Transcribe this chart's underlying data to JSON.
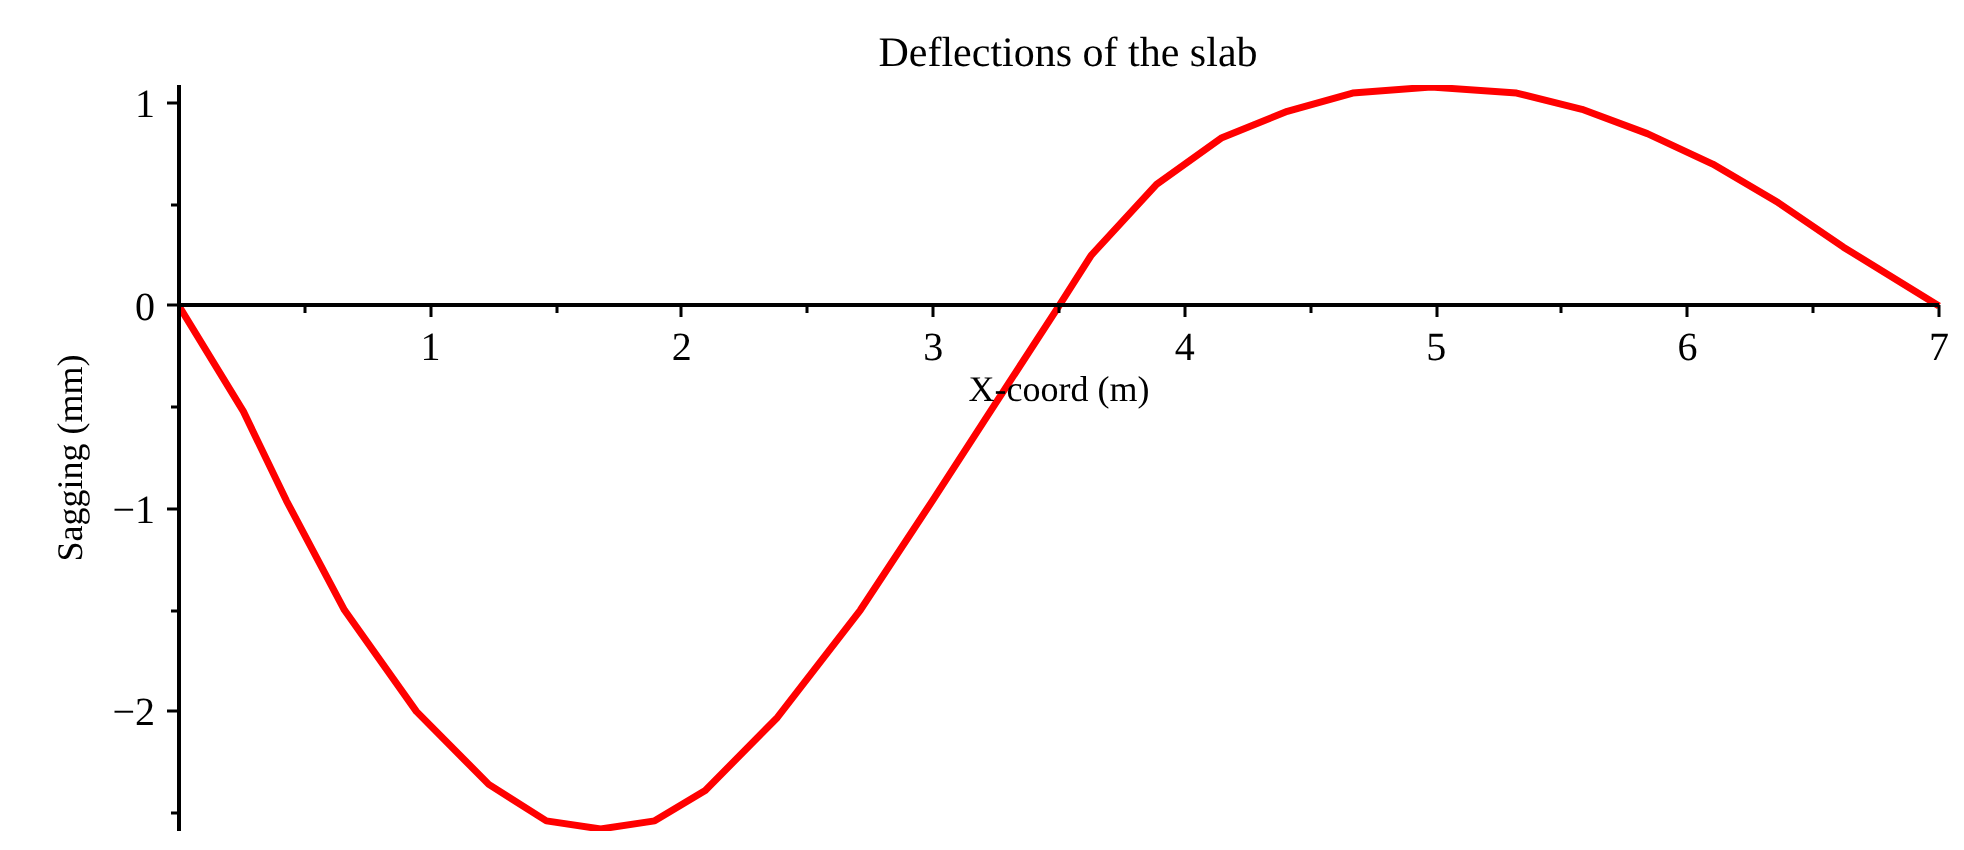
{
  "chart_data": {
    "type": "line",
    "title": "Deflections of the slab",
    "xlabel": "X-coord (m)",
    "ylabel": "Sagging (mm)",
    "x": [
      0,
      0.256,
      0.427,
      0.658,
      0.944,
      1.232,
      1.461,
      1.677,
      1.892,
      2.093,
      2.38,
      2.71,
      2.997,
      3.227,
      3.5,
      3.628,
      3.888,
      4.148,
      4.408,
      4.668,
      4.98,
      5.32,
      5.58,
      5.84,
      6.1,
      6.36,
      6.62,
      7
    ],
    "series": [
      {
        "color": "#ff0000",
        "values": [
          0,
          -0.52,
          -0.96,
          -1.5,
          -2.0,
          -2.36,
          -2.54,
          -2.58,
          -2.54,
          -2.39,
          -2.03,
          -1.5,
          -0.96,
          -0.52,
          0,
          0.25,
          0.6,
          0.83,
          0.96,
          1.05,
          1.08,
          1.05,
          0.97,
          0.85,
          0.7,
          0.51,
          0.29,
          0
        ]
      }
    ],
    "xlim": [
      0,
      7
    ],
    "ylim": [
      -2.59,
      1.09
    ],
    "xticks": [
      {
        "value": 0.5,
        "label": null
      },
      1,
      {
        "value": 1.5,
        "label": null
      },
      2,
      {
        "value": 2.5,
        "label": null
      },
      3,
      {
        "value": 3.5,
        "label": null
      },
      4,
      {
        "value": 4.5,
        "label": null
      },
      5,
      {
        "value": 5.5,
        "label": null
      },
      6,
      {
        "value": 6.5,
        "label": null
      },
      7
    ],
    "yticks": [
      {
        "value": -2.5,
        "label": null
      },
      {
        "value": -2,
        "label": "−2"
      },
      {
        "value": -1.5,
        "label": null
      },
      {
        "value": -1,
        "label": "−1"
      },
      {
        "value": -0.5,
        "label": null
      },
      0,
      {
        "value": 0.5,
        "label": null
      },
      1
    ],
    "grid": false,
    "marker": "none",
    "line_style": "solid"
  }
}
